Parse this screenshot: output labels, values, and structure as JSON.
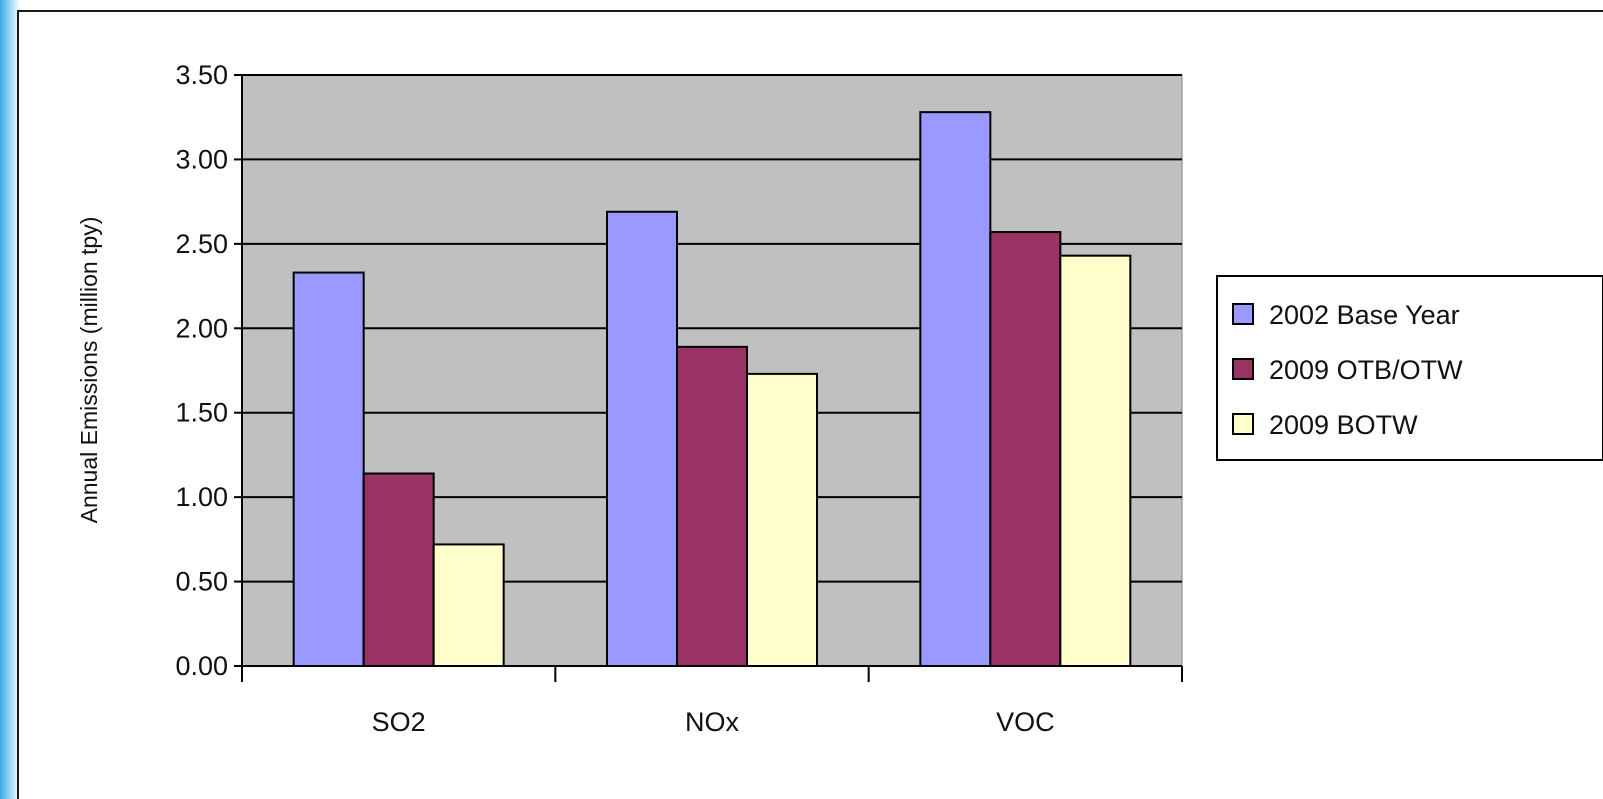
{
  "chart_data": {
    "type": "bar",
    "title": "",
    "xlabel": "",
    "ylabel": "Annual Emissions (million tpy)",
    "ylim": [
      0,
      3.5
    ],
    "yticks": [
      "0.00",
      "0.50",
      "1.00",
      "1.50",
      "2.00",
      "2.50",
      "3.00",
      "3.50"
    ],
    "ytick_values": [
      0,
      0.5,
      1.0,
      1.5,
      2.0,
      2.5,
      3.0,
      3.5
    ],
    "categories": [
      "SO2",
      "NOx",
      "VOC"
    ],
    "grid": true,
    "legend_position": "right",
    "plot_background": "#c0c0c0",
    "series": [
      {
        "name": "2002 Base Year",
        "color": "#9999ff",
        "values": [
          2.33,
          2.69,
          3.28
        ]
      },
      {
        "name": "2009 OTB/OTW",
        "color": "#993366",
        "values": [
          1.14,
          1.89,
          2.57
        ]
      },
      {
        "name": "2009 BOTW",
        "color": "#ffffcc",
        "values": [
          0.72,
          1.73,
          2.43
        ]
      }
    ]
  }
}
